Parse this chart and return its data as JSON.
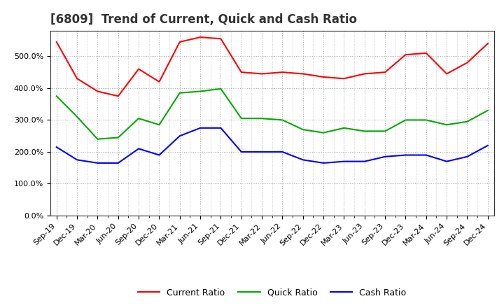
{
  "title": "[6809]  Trend of Current, Quick and Cash Ratio",
  "x_labels": [
    "Sep-19",
    "Dec-19",
    "Mar-20",
    "Jun-20",
    "Sep-20",
    "Dec-20",
    "Mar-21",
    "Jun-21",
    "Sep-21",
    "Dec-21",
    "Mar-22",
    "Jun-22",
    "Sep-22",
    "Dec-22",
    "Mar-23",
    "Jun-23",
    "Sep-23",
    "Dec-23",
    "Mar-24",
    "Jun-24",
    "Sep-24",
    "Dec-24"
  ],
  "current_ratio": [
    545,
    430,
    390,
    375,
    460,
    420,
    545,
    560,
    555,
    450,
    445,
    450,
    445,
    435,
    430,
    445,
    450,
    505,
    510,
    445,
    480,
    540
  ],
  "quick_ratio": [
    375,
    310,
    240,
    245,
    305,
    285,
    385,
    390,
    398,
    305,
    305,
    300,
    270,
    260,
    275,
    265,
    265,
    300,
    300,
    285,
    295,
    330
  ],
  "cash_ratio": [
    215,
    175,
    165,
    165,
    210,
    190,
    250,
    275,
    275,
    200,
    200,
    200,
    175,
    165,
    170,
    170,
    185,
    190,
    190,
    170,
    185,
    220
  ],
  "current_color": "#FF0000",
  "quick_color": "#00AA00",
  "cash_color": "#0000FF",
  "ylim": [
    0,
    580
  ],
  "yticks": [
    0,
    100,
    200,
    300,
    400,
    500
  ],
  "ytick_labels": [
    "0.0%",
    "100.0%",
    "200.0%",
    "300.0%",
    "400.0%",
    "500.0%"
  ],
  "grid_color": "#999999",
  "bg_color": "#ffffff",
  "plot_bg_color": "#ffffff",
  "legend_labels": [
    "Current Ratio",
    "Quick Ratio",
    "Cash Ratio"
  ],
  "title_fontsize": 12,
  "tick_fontsize": 8,
  "legend_fontsize": 9
}
